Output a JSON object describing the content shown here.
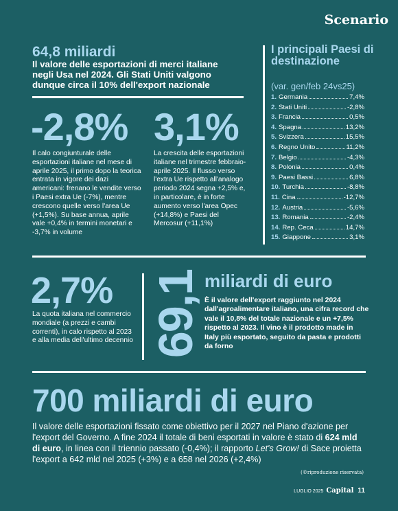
{
  "header": {
    "section": "Scenario"
  },
  "stat_64": {
    "value": "64,8 miliardi",
    "description": "Il valore delle esportazioni di merci italiane negli Usa nel 2024. Gli Stati Uniti valgono dunque circa il 10% dell'export nazionale"
  },
  "stat_minus28": {
    "value": "-2,8%",
    "description": "Il calo congiunturale delle esportazioni italiane nel mese di aprile 2025, il primo dopo la teorica entrata in vigore dei dazi americani: frenano le vendite verso i Paesi extra Ue (-7%), mentre crescono quelle verso l'area Ue (+1,5%). Su base annua, aprile vale +0,4% in termini monetari e -3,7% in volume"
  },
  "stat_31": {
    "value": "3,1%",
    "description": "La crescita delle esportazioni italiane nel trimestre febbraio-aprile 2025. Il flusso verso l'extra Ue rispetto all'analogo periodo 2024 segna +2,5% e, in particolare, è in forte aumento verso l'area Opec (+14,8%) e Paesi del Mercosur (+11,1%)"
  },
  "ranking": {
    "title": "I principali Paesi di destinazione",
    "subtitle": "(var. gen/feb 24vs25)",
    "items": [
      {
        "rank": "1.",
        "country": "Germania",
        "change": "7,4%"
      },
      {
        "rank": "2.",
        "country": "Stati Uniti",
        "change": "-2,8%"
      },
      {
        "rank": "3.",
        "country": "Francia",
        "change": "0,5%"
      },
      {
        "rank": "4.",
        "country": "Spagna",
        "change": "13,2%"
      },
      {
        "rank": "5.",
        "country": "Svizzera",
        "change": "15,5%"
      },
      {
        "rank": "6.",
        "country": "Regno Unito",
        "change": "11,2%"
      },
      {
        "rank": "7.",
        "country": "Belgio",
        "change": "-4,3%"
      },
      {
        "rank": "8.",
        "country": "Polonia",
        "change": "0,4%"
      },
      {
        "rank": "9.",
        "country": "Paesi Bassi",
        "change": "6,8%"
      },
      {
        "rank": "10.",
        "country": "Turchia",
        "change": "-8,8%"
      },
      {
        "rank": "11.",
        "country": "Cina",
        "change": "-12,7%"
      },
      {
        "rank": "12.",
        "country": "Austria",
        "change": "-5,6%"
      },
      {
        "rank": "13.",
        "country": "Romania",
        "change": "-2,4%"
      },
      {
        "rank": "14.",
        "country": "Rep. Ceca",
        "change": "14,7%"
      },
      {
        "rank": "15.",
        "country": "Giappone",
        "change": "3,1%"
      }
    ]
  },
  "stat_27": {
    "value": "2,7%",
    "description": "La quota italiana nel commercio mondiale (a prezzi e cambi correnti), in calo rispetto al 2023 e alla media dell'ultimo decennio"
  },
  "stat_691": {
    "value": "69,1",
    "unit": "miliardi di euro",
    "description": "È il valore dell'export raggiunto nel 2024 dall'agroalimentare italiano, una cifra record che vale il 10,8% del totale nazionale e un +7,5% rispetto al 2023. Il vino è il prodotto made in Italy più esportato, seguito da pasta e prodotti da forno"
  },
  "stat_700": {
    "value": "700 miliardi di euro",
    "desc_before_bold": "Il valore delle esportazioni fissato come obiettivo per il 2027 nel Piano d'azione per l'export del Governo. A fine 2024 il totale di beni esportati in valore è stato di ",
    "desc_bold": "624 mld di euro",
    "desc_middle": ", in linea con il triennio passato (-0,4%); il rapporto ",
    "desc_italic": "Let's Grow!",
    "desc_end": " di Sace proietta l'export a 642 mld nel 2025 (+3%) e a 658 nel 2026 (+2,4%)"
  },
  "copyright": "(©riproduzione riservata)",
  "footer": {
    "date": "LUGLIO 2025",
    "brand": "Capital",
    "page": "11"
  }
}
